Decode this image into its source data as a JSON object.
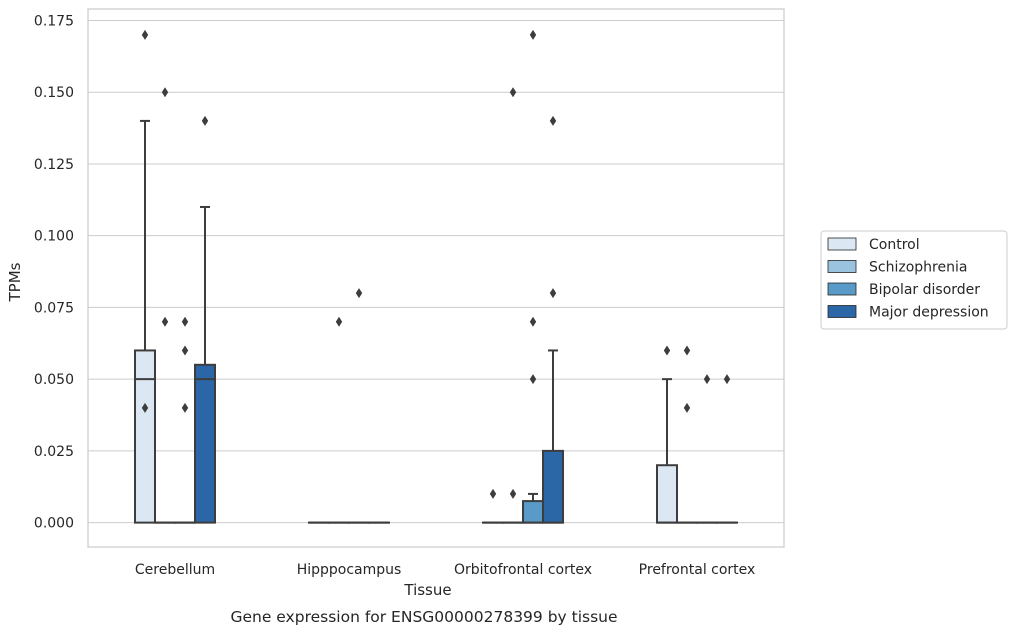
{
  "chart_data": {
    "type": "box",
    "title": "",
    "caption": "Gene expression for ENSG00000278399 by tissue",
    "xlabel": "Tissue",
    "ylabel": "TPMs",
    "ylim": [
      -0.0085,
      0.179
    ],
    "yticks": [
      "0.000",
      "0.025",
      "0.050",
      "0.075",
      "0.100",
      "0.125",
      "0.150",
      "0.175"
    ],
    "ytick_values": [
      0,
      0.025,
      0.05,
      0.075,
      0.1,
      0.125,
      0.15,
      0.175
    ],
    "grid": "horizontal",
    "legend_position": "right",
    "categories": [
      "Cerebellum",
      "Hipppocampus",
      "Orbitofrontal cortex",
      "Prefrontal cortex"
    ],
    "series": [
      {
        "name": "Control",
        "color": "#dbe8f4",
        "boxes": [
          {
            "q1": 0,
            "median": 0.05,
            "q3": 0.06,
            "whisker_low": 0,
            "whisker_high": 0.14,
            "outliers": [
              0.17,
              0.04
            ]
          },
          {
            "q1": 0,
            "median": 0,
            "q3": 0,
            "whisker_low": 0,
            "whisker_high": 0,
            "outliers": []
          },
          {
            "q1": 0,
            "median": 0,
            "q3": 0,
            "whisker_low": 0,
            "whisker_high": 0,
            "outliers": [
              0.01
            ]
          },
          {
            "q1": 0,
            "median": 0,
            "q3": 0.02,
            "whisker_low": 0,
            "whisker_high": 0.05,
            "outliers": [
              0.06
            ]
          }
        ]
      },
      {
        "name": "Schizophrenia",
        "color": "#9ac3df",
        "boxes": [
          {
            "q1": 0,
            "median": 0,
            "q3": 0,
            "whisker_low": 0,
            "whisker_high": 0,
            "outliers": [
              0.15,
              0.07
            ]
          },
          {
            "q1": 0,
            "median": 0,
            "q3": 0,
            "whisker_low": 0,
            "whisker_high": 0,
            "outliers": [
              0.07
            ]
          },
          {
            "q1": 0,
            "median": 0,
            "q3": 0,
            "whisker_low": 0,
            "whisker_high": 0,
            "outliers": [
              0.01,
              0.15
            ]
          },
          {
            "q1": 0,
            "median": 0,
            "q3": 0,
            "whisker_low": 0,
            "whisker_high": 0,
            "outliers": [
              0.06,
              0.04
            ]
          }
        ]
      },
      {
        "name": "Bipolar disorder",
        "color": "#5a9ac8",
        "boxes": [
          {
            "q1": 0,
            "median": 0,
            "q3": 0,
            "whisker_low": 0,
            "whisker_high": 0,
            "outliers": [
              0.07,
              0.06,
              0.04
            ]
          },
          {
            "q1": 0,
            "median": 0,
            "q3": 0,
            "whisker_low": 0,
            "whisker_high": 0,
            "outliers": [
              0.08
            ]
          },
          {
            "q1": 0,
            "median": 0,
            "q3": 0.0075,
            "whisker_low": 0,
            "whisker_high": 0.01,
            "outliers": [
              0.17,
              0.07,
              0.05
            ]
          },
          {
            "q1": 0,
            "median": 0,
            "q3": 0,
            "whisker_low": 0,
            "whisker_high": 0,
            "outliers": [
              0.05
            ]
          }
        ]
      },
      {
        "name": "Major depression",
        "color": "#2b67a6",
        "boxes": [
          {
            "q1": 0,
            "median": 0.05,
            "q3": 0.055,
            "whisker_low": 0,
            "whisker_high": 0.11,
            "outliers": [
              0.14
            ]
          },
          {
            "q1": 0,
            "median": 0,
            "q3": 0,
            "whisker_low": 0,
            "whisker_high": 0,
            "outliers": []
          },
          {
            "q1": 0,
            "median": 0,
            "q3": 0.025,
            "whisker_low": 0,
            "whisker_high": 0.06,
            "outliers": [
              0.14,
              0.08
            ]
          },
          {
            "q1": 0,
            "median": 0,
            "q3": 0,
            "whisker_low": 0,
            "whisker_high": 0,
            "outliers": [
              0.05
            ]
          }
        ]
      }
    ]
  }
}
